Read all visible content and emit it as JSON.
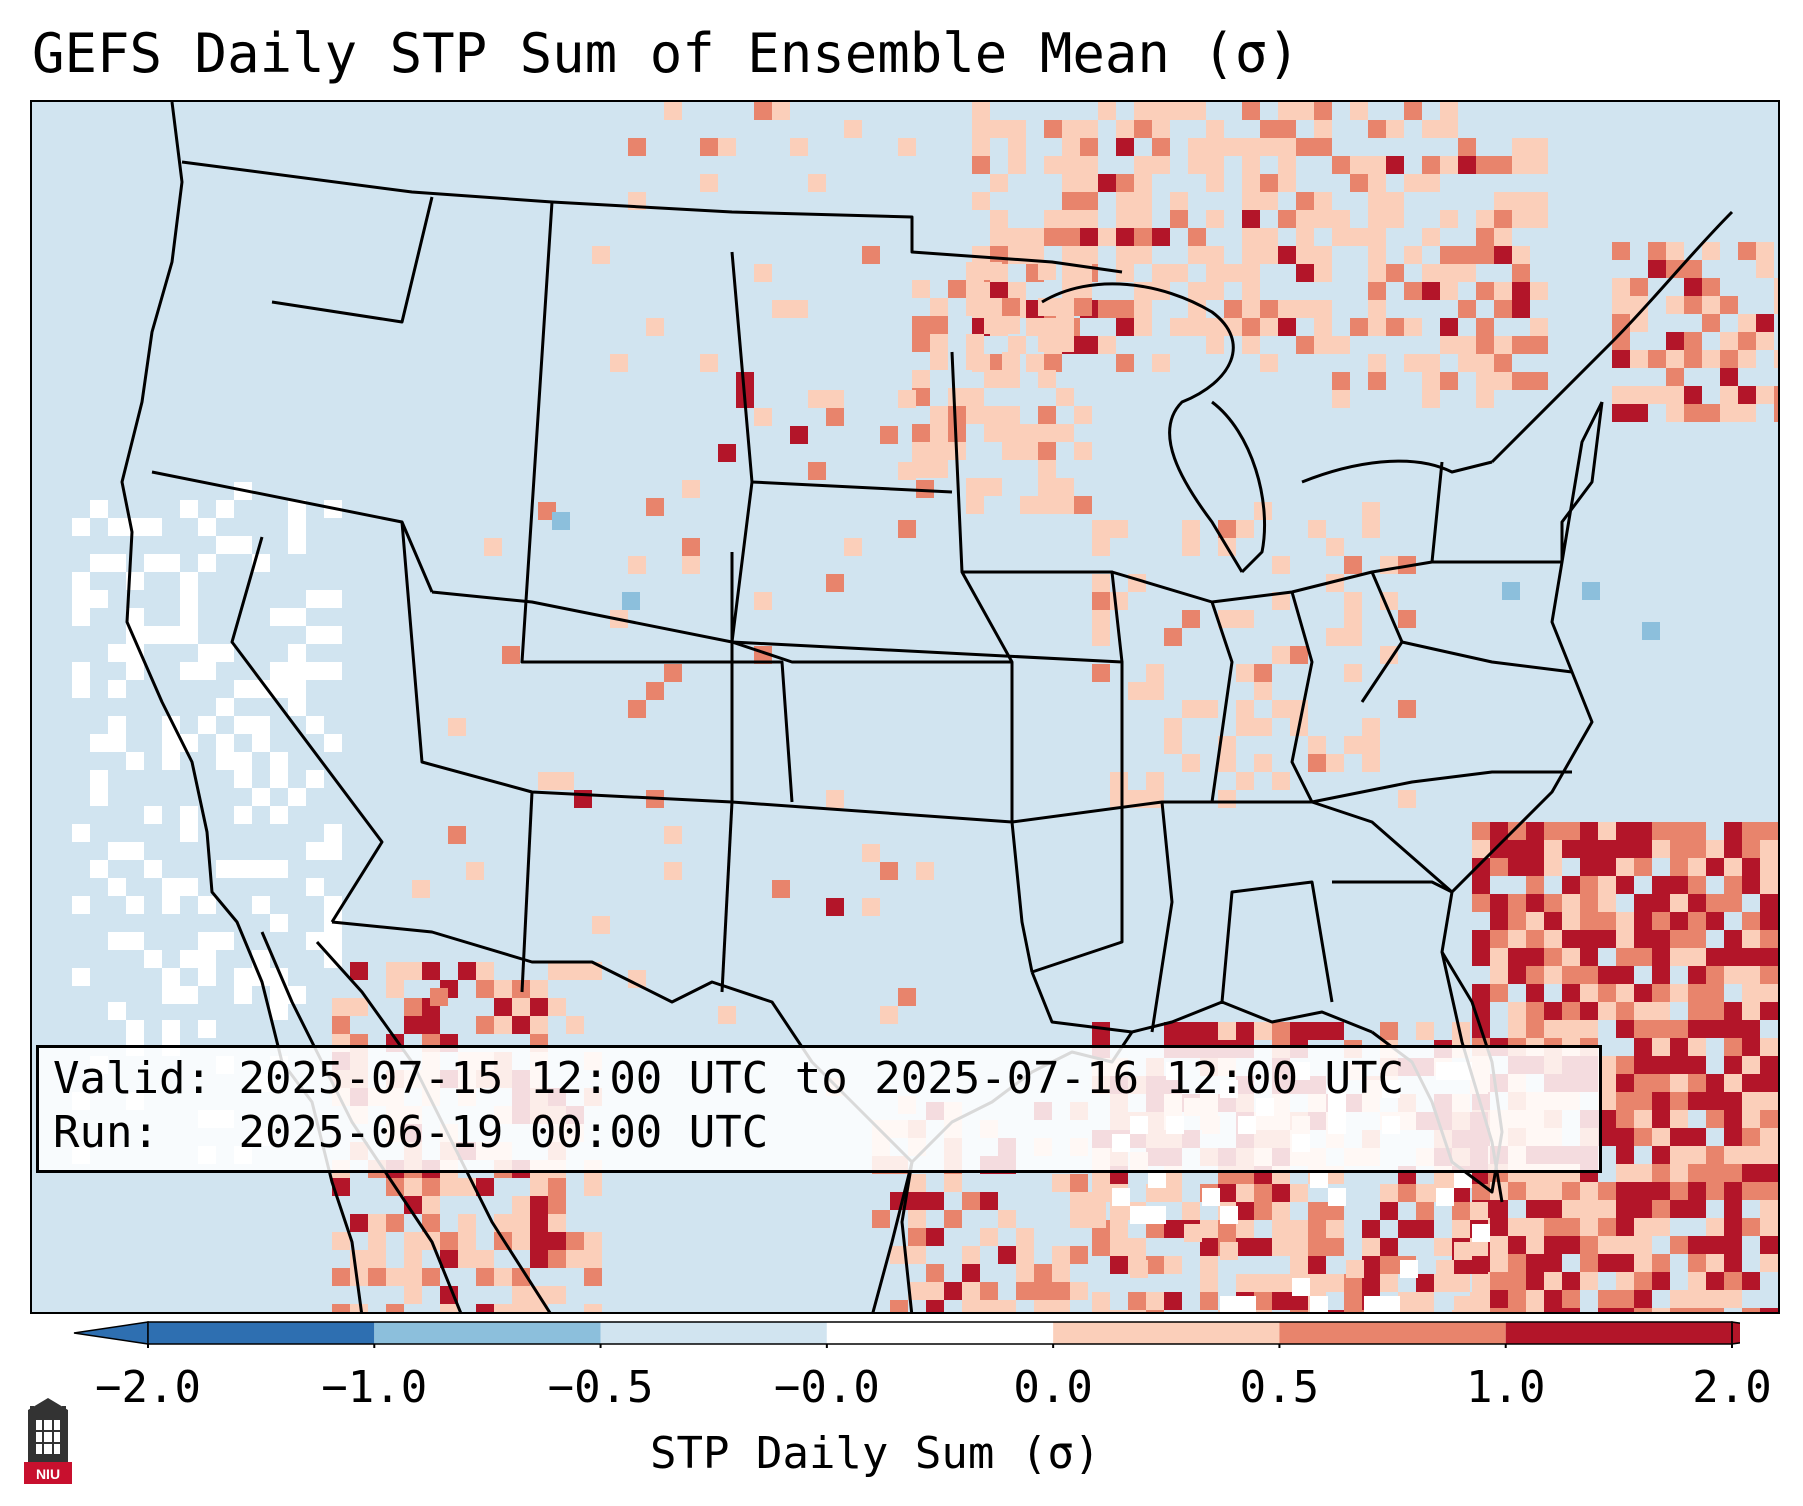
{
  "title": "GEFS Daily STP Sum of Ensemble Mean (σ)",
  "info": {
    "valid_label": "Valid:",
    "valid_text": "2025-07-15 12:00 UTC to 2025-07-16 12:00 UTC",
    "run_label": "Run:",
    "run_text": "2025-06-19 00:00 UTC"
  },
  "colorbar": {
    "label": "STP Daily Sum (σ)",
    "ticks": [
      "−2.0",
      "−1.0",
      "−0.5",
      "−0.0",
      "0.0",
      "0.5",
      "1.0",
      "2.0"
    ],
    "colors": [
      "#2e6fb1",
      "#8cbfdc",
      "#d1e4f0",
      "#ffffff",
      "#fbcfba",
      "#e8846c",
      "#b31529"
    ],
    "extend": "both"
  },
  "map": {
    "projection": "Lambert Conformal (CONUS)",
    "ocean_land_background": "#d1e4f0",
    "boundaries": "state and country borders",
    "logo": "NIU",
    "notable_features": [
      "red hotspots over Florida and western Atlantic",
      "light red over Gulf of Mexico and upper Midwest / Great Lakes",
      "scattered orange over Sierra Madre of Mexico",
      "white (near −0.0) patches off the California coast"
    ]
  }
}
